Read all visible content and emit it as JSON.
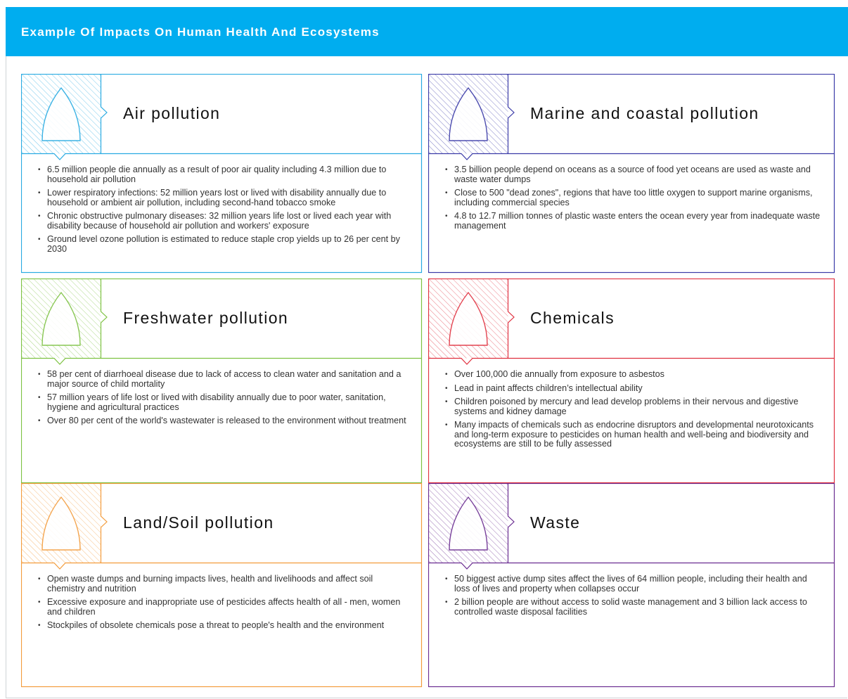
{
  "header": {
    "title": "Example Of Impacts On Human Health And Ecosystems"
  },
  "panels": [
    {
      "title": "Air pollution",
      "items": [
        "6.5 million people die annually as a result of poor air quality including 4.3 million due to household air pollution",
        "Lower respiratory infections: 52 million years lost or lived with disability annually due to household or ambient air pollution, including second-hand tobacco smoke",
        "Chronic obstructive pulmonary diseases: 32 million years life lost or lived each year with disability because of household air pollution and workers' exposure",
        "Ground level ozone pollution is estimated to reduce staple crop yields up to 26 per cent by 2030"
      ]
    },
    {
      "title": "Marine and coastal pollution",
      "items": [
        "3.5 billion people depend on oceans as a source of food yet oceans are used as waste and waste water dumps",
        "Close to 500 \"dead zones\", regions that have too little oxygen to support marine organisms, including commercial species",
        "4.8 to 12.7 million tonnes of plastic waste enters the ocean every year from inadequate waste management"
      ]
    },
    {
      "title": "Freshwater pollution",
      "items": [
        "58 per cent of diarrhoeal disease due to lack of access to clean water and sanitation and a major source of child mortality",
        "57 million years of life lost or lived with disability annually due to poor water, sanitation, hygiene and agricultural practices",
        "Over 80 per cent of the world's wastewater is released to the environment without treatment"
      ]
    },
    {
      "title": "Chemicals",
      "items": [
        "Over 100,000 die annually from exposure to asbestos",
        "Lead in paint affects children’s intellectual ability",
        "Children poisoned by mercury and lead develop problems in their nervous and digestive systems and kidney damage",
        "Many impacts of chemicals such as endocrine disruptors and developmental neurotoxicants and long-term exposure to pesticides on human health and well-being and biodiversity and ecosystems are still to be fully assessed"
      ]
    },
    {
      "title": "Land/Soil pollution",
      "items": [
        "Open waste dumps and burning impacts lives, health and livelihoods and affect soil chemistry and nutrition",
        "Excessive exposure and inappropriate use of pesticides affects health of all - men, women and children",
        "Stockpiles of obsolete chemicals pose a threat to people's health and the environment"
      ]
    },
    {
      "title": "Waste",
      "items": [
        "50 biggest active dump sites affect the lives of 64 million people, including their health and loss of lives and property when collapses occur",
        "2 billion people are without access to solid waste management and 3 billion lack access to controlled waste disposal facilities"
      ]
    }
  ]
}
